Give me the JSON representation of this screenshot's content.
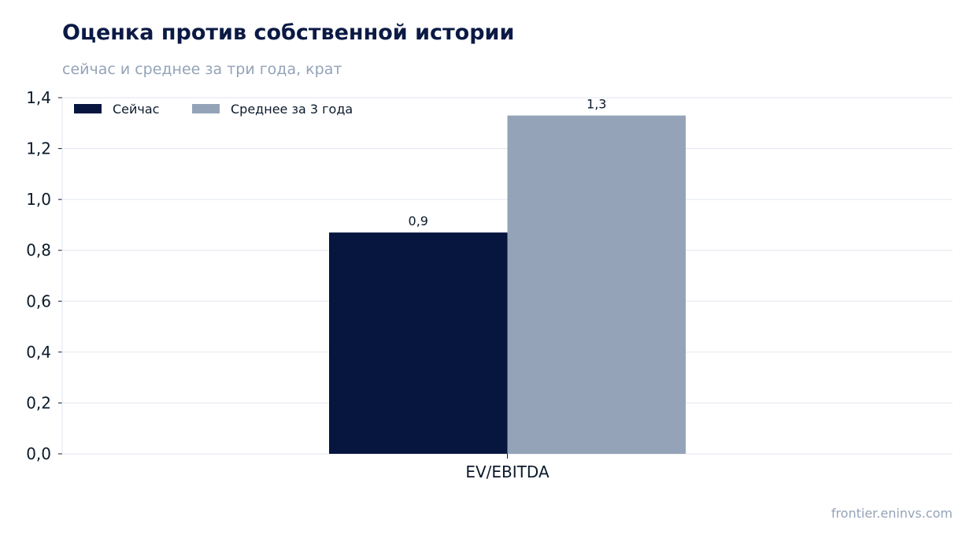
{
  "header": {
    "title": "Оценка против собственной истории",
    "subtitle": "сейчас и среднее за три года, крат"
  },
  "footer": {
    "source": "frontier.eninvs.com"
  },
  "chart_data": {
    "type": "bar",
    "categories": [
      "EV/EBITDA"
    ],
    "series": [
      {
        "name": "Сейчас",
        "values": [
          0.87
        ],
        "label": "0,9",
        "color": "#07163f"
      },
      {
        "name": "Среднее за 3 года",
        "values": [
          1.33
        ],
        "label": "1,3",
        "color": "#94a3b8"
      }
    ],
    "ylim": [
      0,
      1.4
    ],
    "yticks": [
      0.0,
      0.2,
      0.4,
      0.6,
      0.8,
      1.0,
      1.2,
      1.4
    ],
    "ytick_labels": [
      "0,0",
      "0,2",
      "0,4",
      "0,6",
      "0,8",
      "1,0",
      "1,2",
      "1,4"
    ],
    "grid": true,
    "legend": "top-left"
  }
}
